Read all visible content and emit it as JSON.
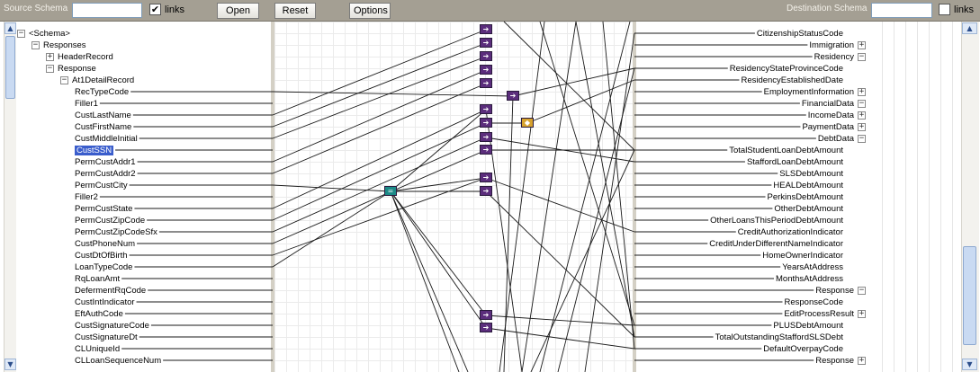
{
  "toolbar": {
    "source_label": "Source Schema",
    "links_label": "links",
    "links_checked": "✔",
    "open_label": "Open",
    "reset_label": "Reset",
    "options_label": "Options",
    "dest_label": "Destination Schema",
    "dest_links_label": "links",
    "dest_links_checked": ""
  },
  "source_tree": [
    {
      "label": "<Schema>",
      "toggle": "−",
      "expanded": true
    },
    {
      "label": "Responses",
      "toggle": "−"
    },
    {
      "label": "HeaderRecord",
      "toggle": "+"
    },
    {
      "label": "Response",
      "toggle": "−"
    },
    {
      "label": "At1DetailRecord",
      "toggle": "−"
    },
    {
      "label": "RecTypeCode"
    },
    {
      "label": "Filler1"
    },
    {
      "label": "CustLastName"
    },
    {
      "label": "CustFirstName"
    },
    {
      "label": "CustMiddleInitial"
    },
    {
      "label": "CustSSN",
      "selected": true
    },
    {
      "label": "PermCustAddr1"
    },
    {
      "label": "PermCustAddr2"
    },
    {
      "label": "PermCustCity"
    },
    {
      "label": "Filler2"
    },
    {
      "label": "PermCustState"
    },
    {
      "label": "PermCustZipCode"
    },
    {
      "label": "PermCustZipCodeSfx"
    },
    {
      "label": "CustPhoneNum"
    },
    {
      "label": "CustDtOfBirth"
    },
    {
      "label": "LoanTypeCode"
    },
    {
      "label": "RqLoanAmt"
    },
    {
      "label": "DefermentRqCode"
    },
    {
      "label": "CustIntIndicator"
    },
    {
      "label": "EftAuthCode"
    },
    {
      "label": "CustSignatureCode"
    },
    {
      "label": "CustSignatureDt"
    },
    {
      "label": "CLUniqueId"
    },
    {
      "label": "CLLoanSequenceNum"
    }
  ],
  "dest_tree": [
    {
      "label": "CitizenshipStatusCode"
    },
    {
      "label": "Immigration",
      "toggle": "+"
    },
    {
      "label": "Residency",
      "toggle": "−"
    },
    {
      "label": "ResidencyStateProvinceCode"
    },
    {
      "label": "ResidencyEstablishedDate"
    },
    {
      "label": "EmploymentInformation",
      "toggle": "+"
    },
    {
      "label": "FinancialData",
      "toggle": "−"
    },
    {
      "label": "IncomeData",
      "toggle": "+"
    },
    {
      "label": "PaymentData",
      "toggle": "+"
    },
    {
      "label": "DebtData",
      "toggle": "−"
    },
    {
      "label": "TotalStudentLoanDebtAmount"
    },
    {
      "label": "StaffordLoanDebtAmount"
    },
    {
      "label": "SLSDebtAmount"
    },
    {
      "label": "HEALDebtAmount"
    },
    {
      "label": "PerkinsDebtAmount"
    },
    {
      "label": "OtherDebtAmount"
    },
    {
      "label": "OtherLoansThisPeriodDebtAmount"
    },
    {
      "label": "CreditAuthorizationIndicator"
    },
    {
      "label": "CreditUnderDifferentNameIndicator"
    },
    {
      "label": "HomeOwnerIndicator"
    },
    {
      "label": "YearsAtAddress"
    },
    {
      "label": "MonthsAtAddress"
    },
    {
      "label": "Response",
      "toggle": "−"
    },
    {
      "label": "ResponseCode"
    },
    {
      "label": "EditProcessResult",
      "toggle": "+"
    },
    {
      "label": "PLUSDebtAmount"
    },
    {
      "label": "TotalOutstandingStaffordSLSDebt"
    },
    {
      "label": "DefaultOverpayCode"
    },
    {
      "label": "Response",
      "toggle": "+"
    }
  ],
  "functoid_colors": {
    "purple": "#5b2d7c",
    "gold": "#d7a22d",
    "teal": "#1c8a87"
  }
}
